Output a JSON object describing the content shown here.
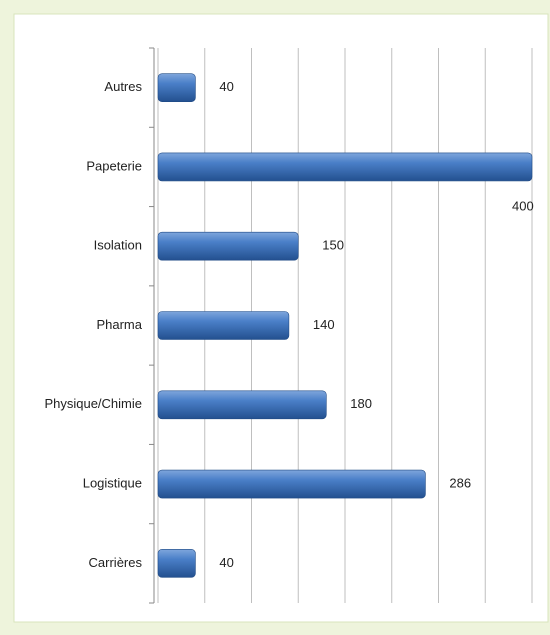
{
  "chart_data": {
    "type": "bar",
    "orientation": "horizontal",
    "categories": [
      "Autres",
      "Papeterie",
      "Isolation",
      "Pharma",
      "Physique/Chimie",
      "Logistique",
      "Carrières"
    ],
    "values": [
      40,
      400,
      150,
      140,
      180,
      286,
      40
    ],
    "color": "#3a6db5",
    "xlim": [
      0,
      400
    ],
    "xticks": [
      0,
      50,
      100,
      150,
      200,
      250,
      300,
      350,
      400
    ],
    "grid": true
  }
}
